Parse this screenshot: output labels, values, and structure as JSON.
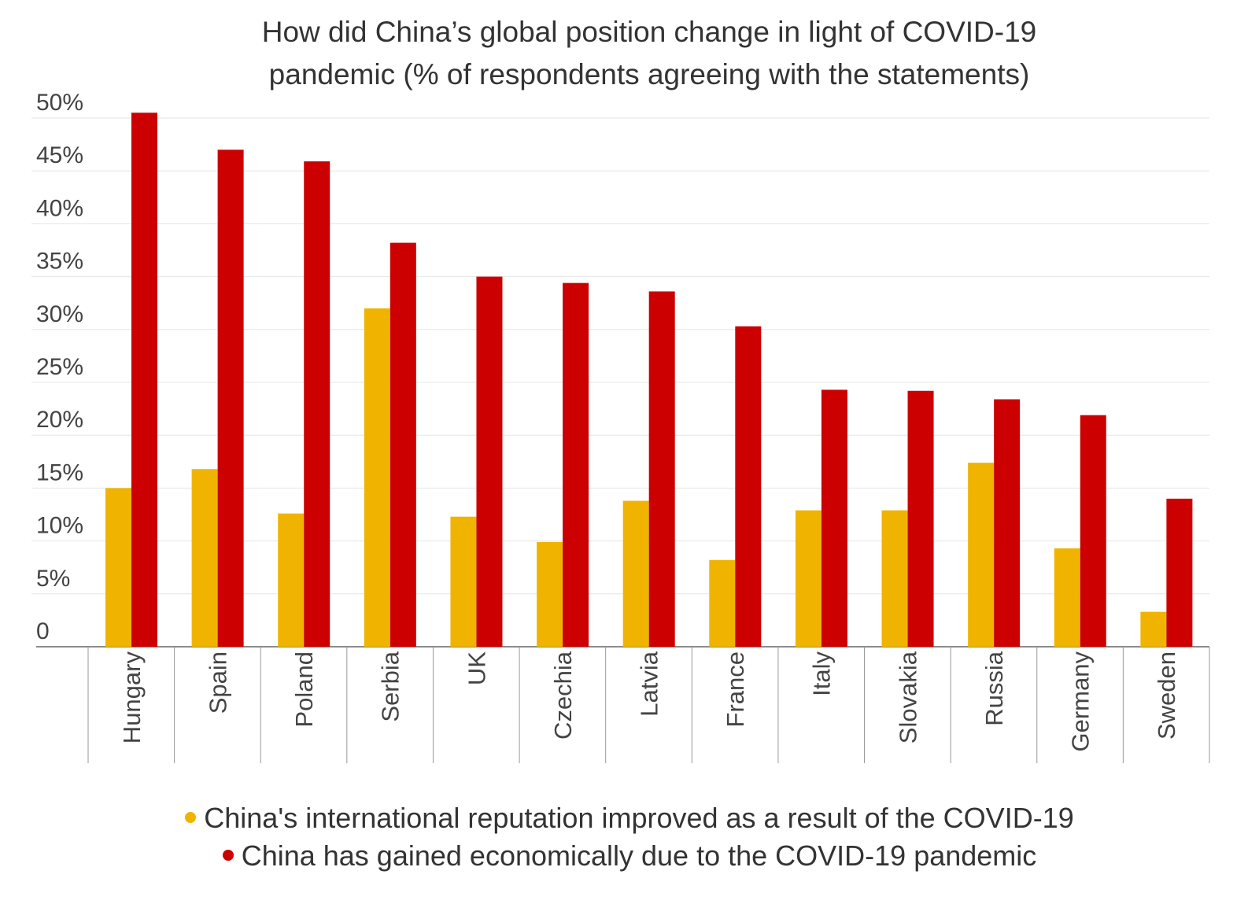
{
  "chart_data": {
    "type": "bar",
    "title": "How did China’s global position change in light of COVID-19 pandemic (% of respondents agreeing with the statements)",
    "categories": [
      "Hungary",
      "Spain",
      "Poland",
      "Serbia",
      "UK",
      "Czechia",
      "Latvia",
      "France",
      "Italy",
      "Slovakia",
      "Russia",
      "Germany",
      "Sweden"
    ],
    "series": [
      {
        "name": "China's international reputation improved as a result of the COVID-19",
        "color": "#f0b400",
        "values": [
          15,
          16.8,
          12.6,
          32,
          12.3,
          9.9,
          13.8,
          8.2,
          12.9,
          12.9,
          17.4,
          9.3,
          3.3
        ]
      },
      {
        "name": "China has gained economically due to the COVID-19 pandemic",
        "color": "#cc0000",
        "values": [
          50.5,
          47,
          45.9,
          38.2,
          35,
          34.4,
          33.6,
          30.3,
          24.3,
          24.2,
          23.4,
          21.9,
          14
        ]
      }
    ],
    "y_ticks": [
      "0",
      "5%",
      "10%",
      "15%",
      "20%",
      "25%",
      "30%",
      "35%",
      "40%",
      "45%",
      "50%"
    ],
    "ylim": [
      0,
      50
    ],
    "grid": true,
    "legend_position": "bottom",
    "xlabel": "",
    "ylabel": ""
  }
}
